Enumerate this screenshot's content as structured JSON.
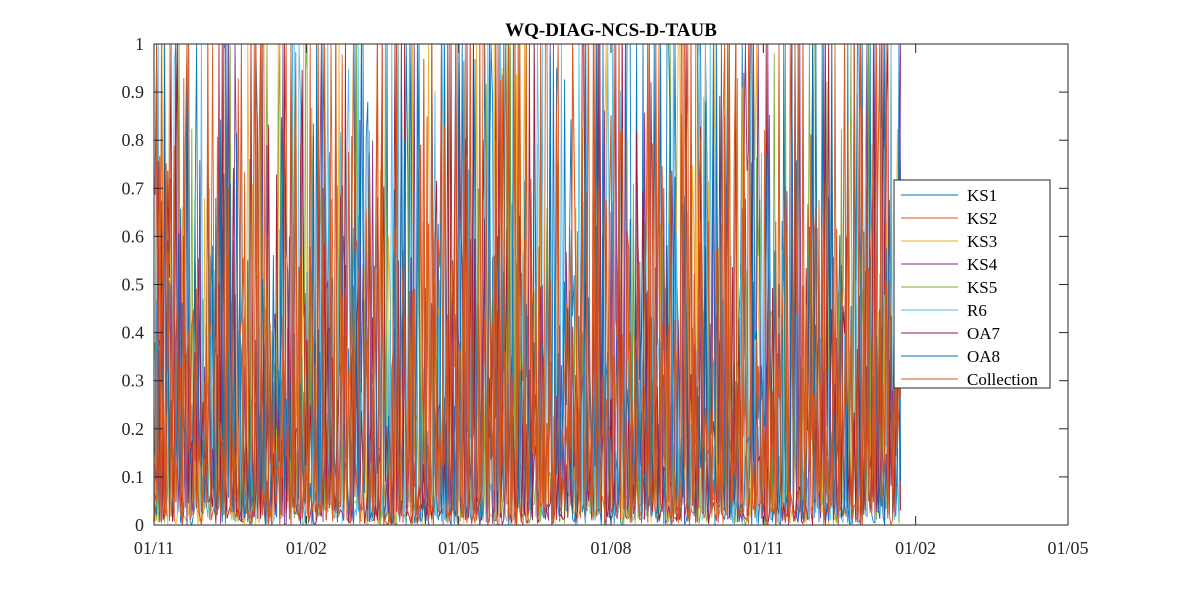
{
  "chart_data": {
    "type": "line",
    "title": "WQ-DIAG-NCS-D-TAUB",
    "xlabel": "",
    "ylabel": "",
    "x_ticks": [
      "01/11",
      "01/02",
      "01/05",
      "01/08",
      "01/11",
      "01/02",
      "01/05"
    ],
    "y_ticks": [
      "0",
      "0.1",
      "0.2",
      "0.3",
      "0.4",
      "0.5",
      "0.6",
      "0.7",
      "0.8",
      "0.9",
      "1"
    ],
    "x_range": [
      "01/11",
      "01/05"
    ],
    "data_end": "late 01 (just before second 01/02)",
    "ylim": [
      0,
      1
    ],
    "grid": false,
    "legend_position": "right",
    "series": [
      {
        "name": "KS1",
        "color": "#0072BD"
      },
      {
        "name": "KS2",
        "color": "#D95319"
      },
      {
        "name": "KS3",
        "color": "#EDB120"
      },
      {
        "name": "KS4",
        "color": "#7E2F8E"
      },
      {
        "name": "KS5",
        "color": "#77AC30"
      },
      {
        "name": "R6",
        "color": "#4DBEEE"
      },
      {
        "name": "OA7",
        "color": "#A2142F"
      },
      {
        "name": "OA8",
        "color": "#0072BD"
      },
      {
        "name": "Collection",
        "color": "#D95319"
      }
    ],
    "note_values": "dense noisy daily series, values spanning 0 to 1 throughout"
  }
}
